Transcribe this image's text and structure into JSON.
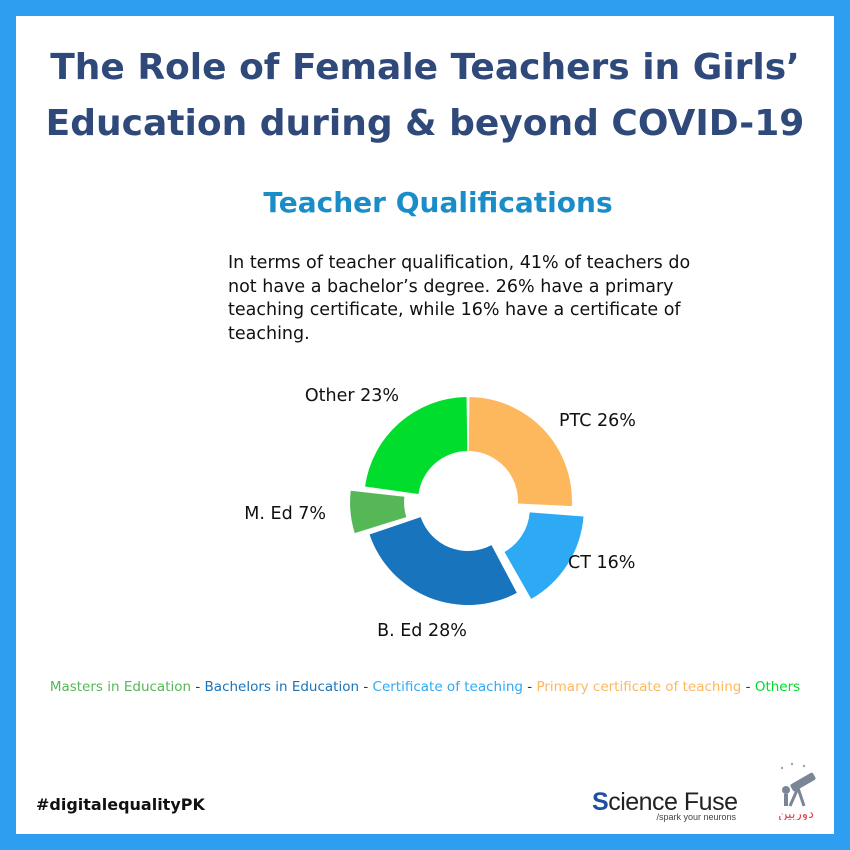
{
  "title_line1": "The Role of Female Teachers in Girls’",
  "title_line2": "Education during & beyond COVID-19",
  "subtitle": "Teacher Qualifications",
  "description": "In terms of teacher qualification, 41% of teachers do not have a bachelor’s degree. 26% have a primary teaching certificate, while 16% have a certificate of teaching.",
  "chart_data": {
    "type": "pie",
    "style": "donut-exploded",
    "slices": [
      {
        "label": "PTC 26%",
        "value": 26,
        "color": "#fdb85e",
        "exploded": false
      },
      {
        "label": "CT 16%",
        "value": 16,
        "color": "#2eaaf5",
        "exploded": true
      },
      {
        "label": "B. Ed 28%",
        "value": 28,
        "color": "#1774bd",
        "exploded": false
      },
      {
        "label": "M. Ed 7%",
        "value": 7,
        "color": "#56b757",
        "exploded": true
      },
      {
        "label": "Other 23%",
        "value": 23,
        "color": "#00dd2c",
        "exploded": false
      }
    ]
  },
  "legend": [
    {
      "text": "Masters in Education",
      "color": "#56b757"
    },
    {
      "text": "Bachelors in Education",
      "color": "#1774bd"
    },
    {
      "text": "Certificate of teaching",
      "color": "#2eaaf5"
    },
    {
      "text": "Primary certificate of teaching",
      "color": "#fdb85e"
    },
    {
      "text": "Others",
      "color": "#00dd2c"
    }
  ],
  "legend_separator": " - ",
  "hashtag": "#digitalequalityPK",
  "brand": {
    "initial": "S",
    "rest": "cience Fuse",
    "tagline": "/spark your neurons",
    "logo_icon": "telescope-icon",
    "logo_text": "دوربین"
  }
}
